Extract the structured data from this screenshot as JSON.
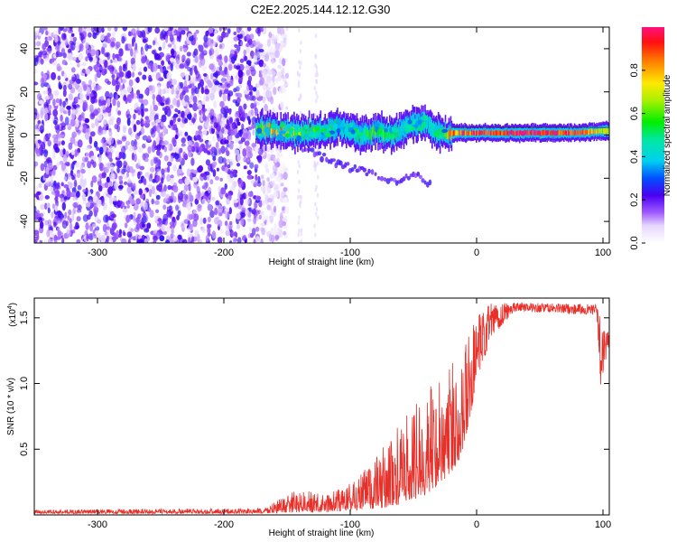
{
  "chart_data": [
    {
      "type": "heatmap",
      "title": "C2E2.2025.144.12.12.G30",
      "xlabel": "Height of straight line (km)",
      "ylabel": "Frequency (Hz)",
      "xlim": [
        -350,
        105
      ],
      "ylim": [
        -50,
        50
      ],
      "x_ticks": [
        -300,
        -200,
        -100,
        0,
        100
      ],
      "y_ticks": [
        -40,
        -20,
        0,
        20,
        40
      ],
      "colorbar": {
        "label": "Normalized spectral amplitude",
        "range": [
          0,
          1
        ],
        "ticks": [
          "0.0",
          "0.2",
          "0.4",
          "0.6",
          "0.8"
        ],
        "tick_values": [
          0,
          0.2,
          0.4,
          0.6,
          0.8
        ]
      },
      "features": {
        "noise_region_x": [
          -350,
          -160
        ],
        "signal_track": [
          {
            "x": -175,
            "f": 3,
            "amp": 0.55
          },
          {
            "x": -160,
            "f": 2,
            "amp": 0.85
          },
          {
            "x": -140,
            "f": 1,
            "amp": 0.6
          },
          {
            "x": -120,
            "f": 2,
            "amp": 0.5
          },
          {
            "x": -110,
            "f": 4,
            "amp": 0.45
          },
          {
            "x": -100,
            "f": 2,
            "amp": 0.5
          },
          {
            "x": -90,
            "f": -1,
            "amp": 0.5
          },
          {
            "x": -80,
            "f": 2,
            "amp": 0.6
          },
          {
            "x": -70,
            "f": 0,
            "amp": 0.55
          },
          {
            "x": -60,
            "f": 2,
            "amp": 0.45
          },
          {
            "x": -50,
            "f": 6,
            "amp": 0.4
          },
          {
            "x": -40,
            "f": 5,
            "amp": 0.4
          },
          {
            "x": -30,
            "f": 1,
            "amp": 0.45
          },
          {
            "x": -20,
            "f": 1,
            "amp": 0.85
          },
          {
            "x": 0,
            "f": 1,
            "amp": 0.9
          },
          {
            "x": 40,
            "f": 1,
            "amp": 1.0
          },
          {
            "x": 80,
            "f": 1,
            "amp": 0.9
          },
          {
            "x": 100,
            "f": 2,
            "amp": 0.7
          }
        ],
        "secondary_branch": [
          {
            "x": -150,
            "f": -2
          },
          {
            "x": -130,
            "f": -8
          },
          {
            "x": -115,
            "f": -12
          },
          {
            "x": -100,
            "f": -15
          },
          {
            "x": -85,
            "f": -17
          },
          {
            "x": -65,
            "f": -22
          },
          {
            "x": -50,
            "f": -18
          },
          {
            "x": -35,
            "f": -24
          }
        ]
      }
    },
    {
      "type": "line",
      "title": "",
      "xlabel": "Height of straight line (km)",
      "ylabel": "SNR (10 * v/v)",
      "y_multiplier": "(x10",
      "y_multiplier_exp": "4",
      "y_multiplier_close": ")",
      "xlim": [
        -350,
        105
      ],
      "ylim": [
        0,
        1.65
      ],
      "x_ticks": [
        -300,
        -200,
        -100,
        0,
        100
      ],
      "y_ticks": [
        0.5,
        1.0,
        1.5
      ],
      "y_tick_labels": [
        "0.5",
        "1.0",
        "1.5"
      ],
      "series": [
        {
          "name": "SNR",
          "color": "#e8302a",
          "envelope": [
            {
              "x": -350,
              "low": 0.01,
              "high": 0.04
            },
            {
              "x": -170,
              "low": 0.01,
              "high": 0.05
            },
            {
              "x": -140,
              "low": 0.02,
              "high": 0.2
            },
            {
              "x": -120,
              "low": 0.02,
              "high": 0.15
            },
            {
              "x": -100,
              "low": 0.03,
              "high": 0.25
            },
            {
              "x": -80,
              "low": 0.04,
              "high": 0.45
            },
            {
              "x": -60,
              "low": 0.08,
              "high": 0.7
            },
            {
              "x": -40,
              "low": 0.15,
              "high": 0.95
            },
            {
              "x": -20,
              "low": 0.3,
              "high": 1.2
            },
            {
              "x": -10,
              "low": 0.5,
              "high": 1.3
            },
            {
              "x": 0,
              "low": 1.0,
              "high": 1.5
            },
            {
              "x": 10,
              "low": 1.3,
              "high": 1.62
            },
            {
              "x": 30,
              "low": 1.55,
              "high": 1.62
            },
            {
              "x": 95,
              "low": 1.52,
              "high": 1.6
            },
            {
              "x": 98,
              "low": 0.98,
              "high": 1.5
            },
            {
              "x": 105,
              "low": 1.3,
              "high": 1.38
            }
          ]
        }
      ]
    }
  ]
}
